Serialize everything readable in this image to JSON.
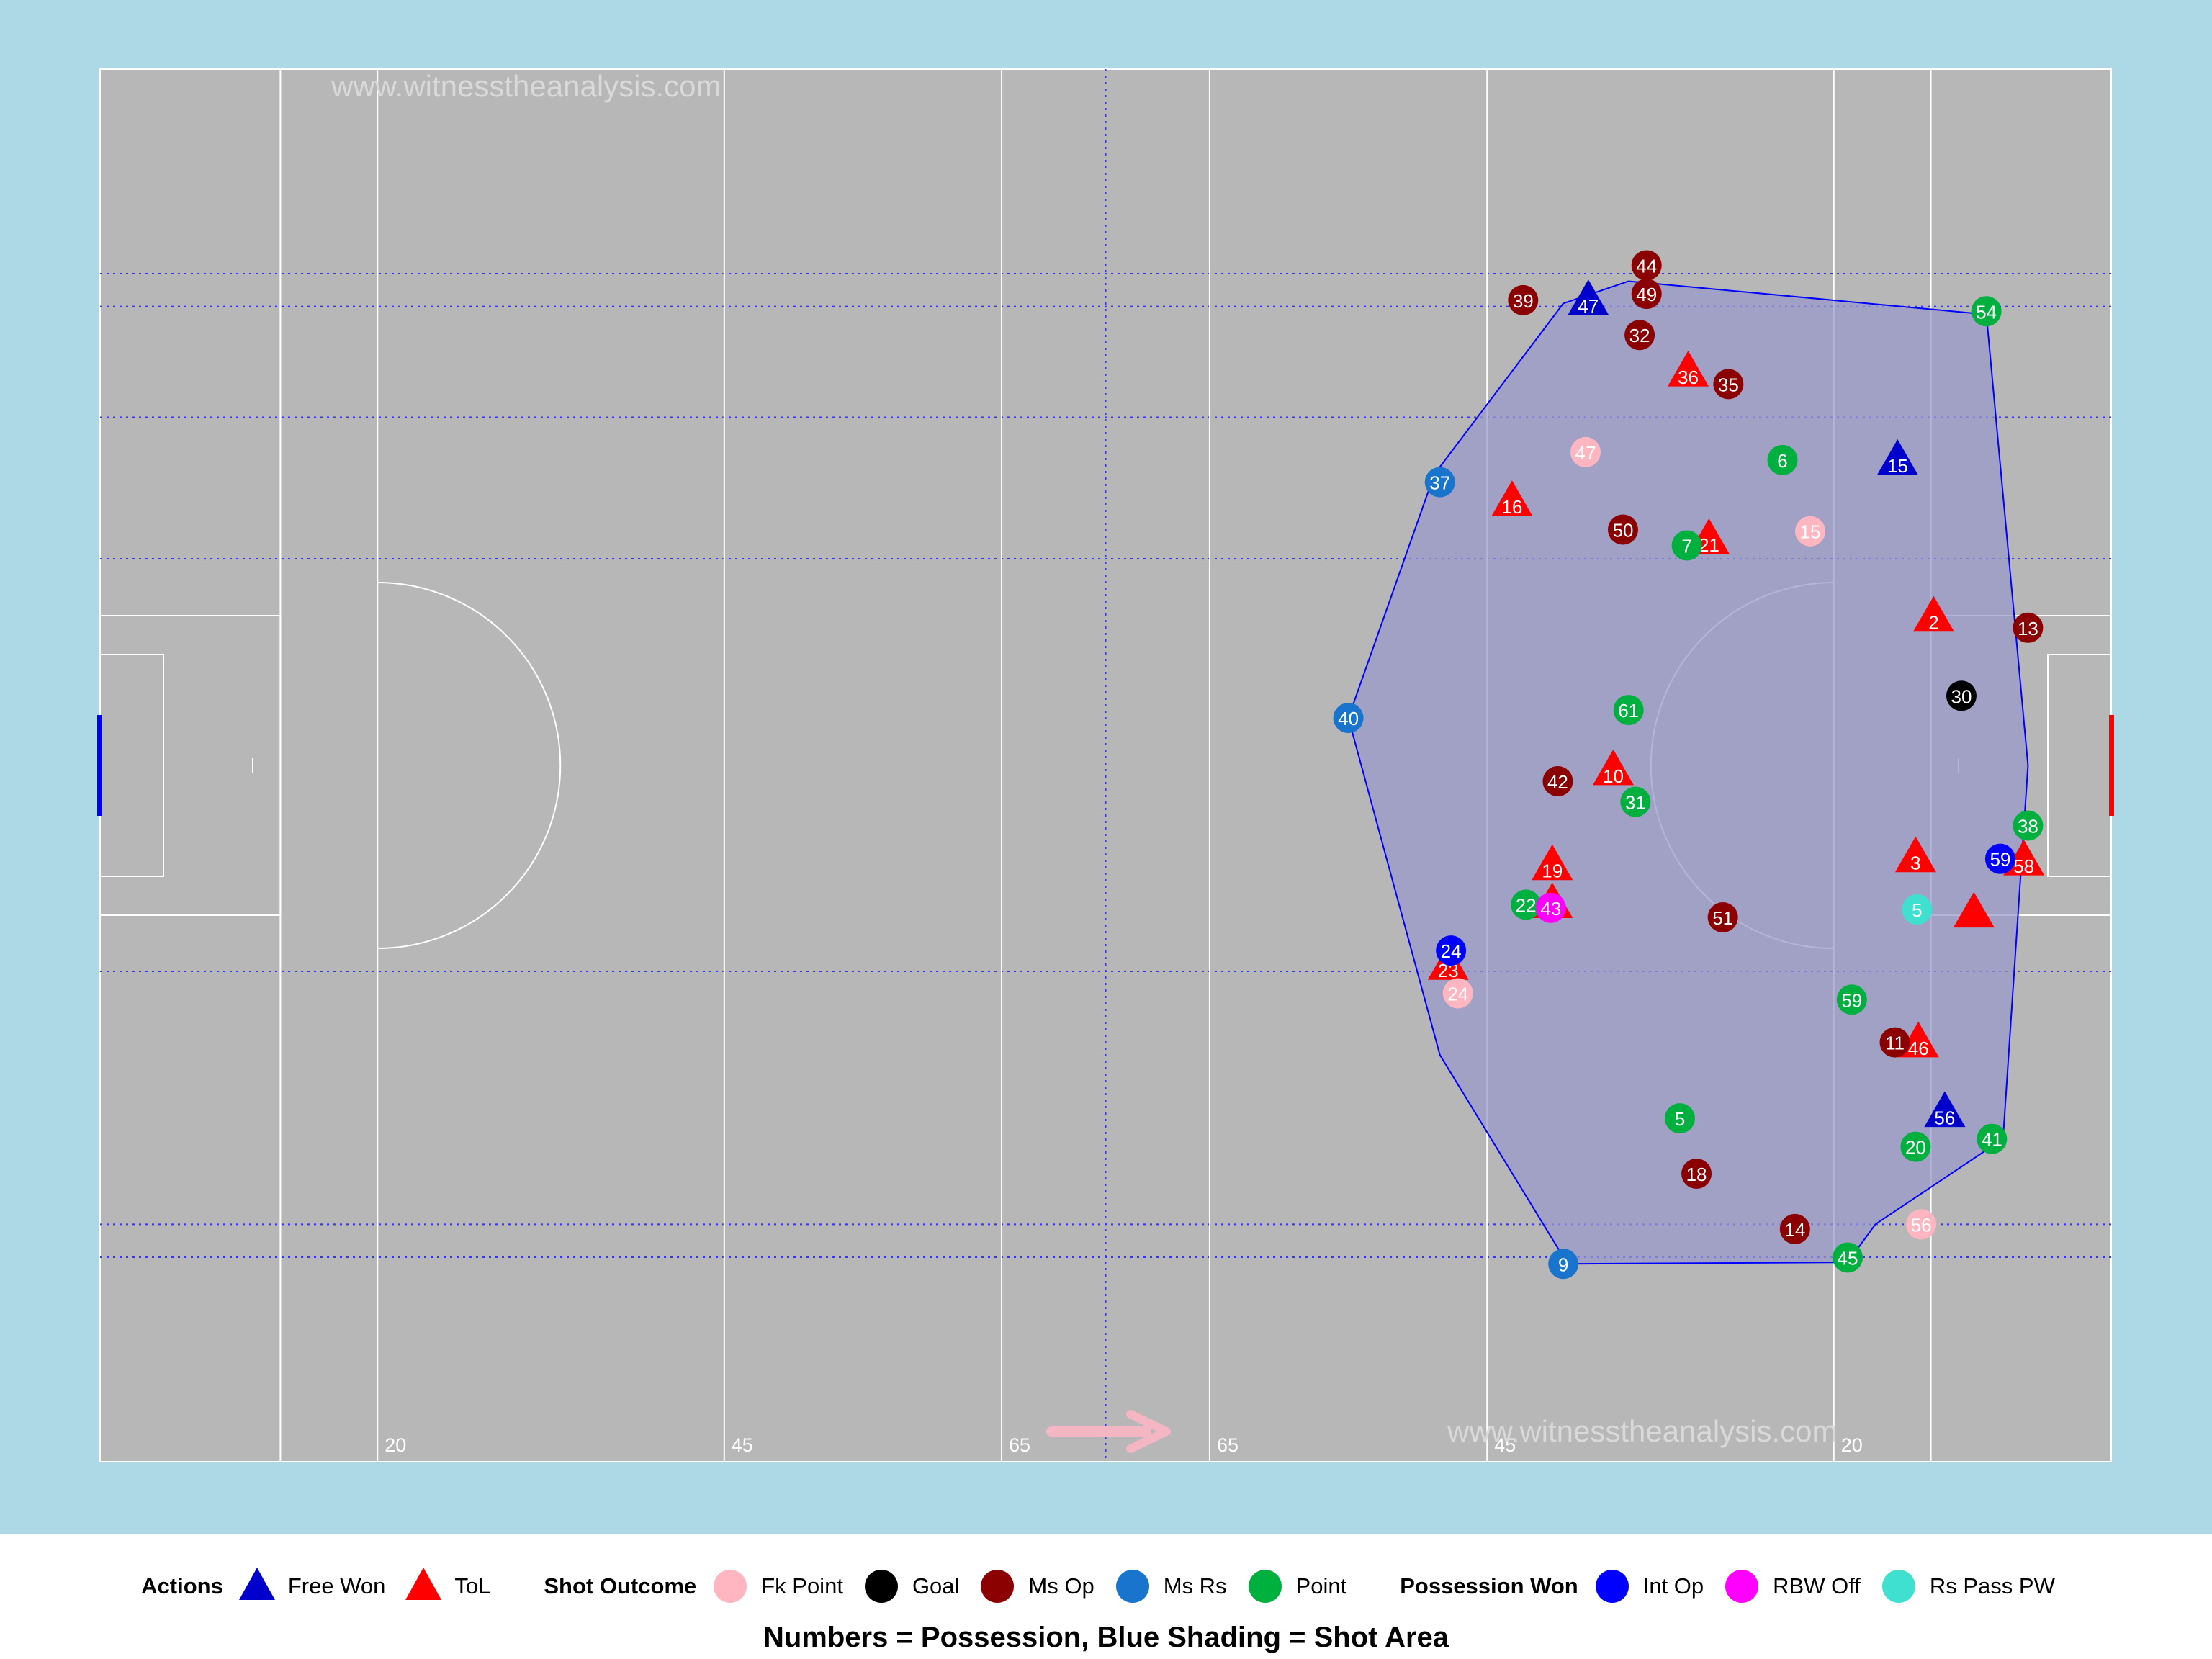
{
  "watermark_text": "www.witnesstheanalysis.com",
  "caption": "Numbers = Possession, Blue Shading = Shot Area",
  "legend": {
    "actions_title": "Actions",
    "shot_title": "Shot Outcome",
    "possession_title": "Possession Won",
    "items": [
      {
        "label": "Free Won",
        "shape": "triangle",
        "color": "#0000cd"
      },
      {
        "label": "ToL",
        "shape": "triangle",
        "color": "#ff0000"
      },
      {
        "label": "Fk Point",
        "shape": "circle",
        "color": "#ffb6c1"
      },
      {
        "label": "Goal",
        "shape": "circle",
        "color": "#000000"
      },
      {
        "label": "Ms Op",
        "shape": "circle",
        "color": "#8b0000"
      },
      {
        "label": "Ms Rs",
        "shape": "circle",
        "color": "#1874cd"
      },
      {
        "label": "Point",
        "shape": "circle",
        "color": "#00b03f"
      },
      {
        "label": "Int Op",
        "shape": "circle",
        "color": "#0000ff"
      },
      {
        "label": "RBW Off",
        "shape": "circle",
        "color": "#ff00ff"
      },
      {
        "label": "Rs Pass PW",
        "shape": "circle",
        "color": "#40e0d0"
      }
    ]
  },
  "chart_data": {
    "type": "scatter",
    "title": "",
    "xlabel": "",
    "ylabel": "",
    "xlim": [
      0,
      145
    ],
    "ylim": [
      0,
      88
    ],
    "pitch_line_labels": [
      "20",
      "45",
      "65",
      "65",
      "45",
      "20"
    ],
    "attack_direction": "right",
    "colors": {
      "Free Won": "#0000cd",
      "ToL": "#ff0000",
      "Fk Point": "#ffb6c1",
      "Goal": "#000000",
      "Ms Op": "#8b0000",
      "Ms Rs": "#1874cd",
      "Point": "#00b03f",
      "Int Op": "#0000ff",
      "RBW Off": "#ff00ff",
      "Rs Pass PW": "#40e0d0"
    },
    "shot_area_hull": [
      [
        105.5,
        73.2
      ],
      [
        110.2,
        74.6
      ],
      [
        136.0,
        72.5
      ],
      [
        139.0,
        44.0
      ],
      [
        137.2,
        20.4
      ],
      [
        128.0,
        15.0
      ],
      [
        126.0,
        12.6
      ],
      [
        105.8,
        12.5
      ],
      [
        96.6,
        25.7
      ],
      [
        90.0,
        47.0
      ],
      [
        96.2,
        62.4
      ]
    ],
    "points": [
      {
        "type": "Free Won",
        "shape": "triangle",
        "x": 107.3,
        "y": 73.3,
        "label": "47"
      },
      {
        "type": "Free Won",
        "shape": "triangle",
        "x": 129.6,
        "y": 63.2,
        "label": "15"
      },
      {
        "type": "Free Won",
        "shape": "triangle",
        "x": 133.0,
        "y": 22.0,
        "label": "56"
      },
      {
        "type": "ToL",
        "shape": "triangle",
        "x": 114.5,
        "y": 68.8,
        "label": "36"
      },
      {
        "type": "ToL",
        "shape": "triangle",
        "x": 101.8,
        "y": 60.6,
        "label": "16"
      },
      {
        "type": "ToL",
        "shape": "triangle",
        "x": 116.0,
        "y": 58.2,
        "label": "21"
      },
      {
        "type": "ToL",
        "shape": "triangle",
        "x": 132.2,
        "y": 53.3,
        "label": "2"
      },
      {
        "type": "ToL",
        "shape": "triangle",
        "x": 109.1,
        "y": 43.6,
        "label": "10"
      },
      {
        "type": "ToL",
        "shape": "triangle",
        "x": 104.7,
        "y": 37.6,
        "label": "19"
      },
      {
        "type": "ToL",
        "shape": "triangle",
        "x": 130.9,
        "y": 38.1,
        "label": "3"
      },
      {
        "type": "ToL",
        "shape": "triangle",
        "x": 138.7,
        "y": 37.9,
        "label": "58"
      },
      {
        "type": "ToL",
        "shape": "triangle",
        "x": 135.1,
        "y": 34.6,
        "label": ""
      },
      {
        "type": "ToL",
        "shape": "triangle",
        "x": 104.7,
        "y": 35.2,
        "label": ""
      },
      {
        "type": "ToL",
        "shape": "triangle",
        "x": 97.2,
        "y": 31.3,
        "label": "23"
      },
      {
        "type": "ToL",
        "shape": "triangle",
        "x": 131.1,
        "y": 26.4,
        "label": "46"
      },
      {
        "type": "Fk Point",
        "shape": "circle",
        "x": 107.1,
        "y": 63.8,
        "label": "47"
      },
      {
        "type": "Fk Point",
        "shape": "circle",
        "x": 123.3,
        "y": 58.8,
        "label": "15"
      },
      {
        "type": "Fk Point",
        "shape": "circle",
        "x": 97.9,
        "y": 29.6,
        "label": "24"
      },
      {
        "type": "Fk Point",
        "shape": "circle",
        "x": 131.3,
        "y": 15.0,
        "label": "56"
      },
      {
        "type": "Goal",
        "shape": "circle",
        "x": 134.2,
        "y": 48.4,
        "label": "30"
      },
      {
        "type": "Ms Op",
        "shape": "circle",
        "x": 111.5,
        "y": 75.6,
        "label": "44"
      },
      {
        "type": "Ms Op",
        "shape": "circle",
        "x": 102.6,
        "y": 73.4,
        "label": "39"
      },
      {
        "type": "Ms Op",
        "shape": "circle",
        "x": 111.5,
        "y": 73.8,
        "label": "49"
      },
      {
        "type": "Ms Op",
        "shape": "circle",
        "x": 111.0,
        "y": 71.2,
        "label": "32"
      },
      {
        "type": "Ms Op",
        "shape": "circle",
        "x": 117.4,
        "y": 68.1,
        "label": "35"
      },
      {
        "type": "Ms Op",
        "shape": "circle",
        "x": 109.8,
        "y": 58.9,
        "label": "50"
      },
      {
        "type": "Ms Op",
        "shape": "circle",
        "x": 139.0,
        "y": 52.7,
        "label": "13"
      },
      {
        "type": "Ms Op",
        "shape": "circle",
        "x": 105.1,
        "y": 43.0,
        "label": "42"
      },
      {
        "type": "Ms Op",
        "shape": "circle",
        "x": 117.0,
        "y": 34.4,
        "label": "51"
      },
      {
        "type": "Ms Op",
        "shape": "circle",
        "x": 129.4,
        "y": 26.5,
        "label": "11"
      },
      {
        "type": "Ms Op",
        "shape": "circle",
        "x": 115.1,
        "y": 18.2,
        "label": "18"
      },
      {
        "type": "Ms Op",
        "shape": "circle",
        "x": 122.2,
        "y": 14.7,
        "label": "14"
      },
      {
        "type": "Ms Rs",
        "shape": "circle",
        "x": 96.6,
        "y": 61.9,
        "label": "37"
      },
      {
        "type": "Ms Rs",
        "shape": "circle",
        "x": 90.0,
        "y": 47.0,
        "label": "40"
      },
      {
        "type": "Ms Rs",
        "shape": "circle",
        "x": 105.5,
        "y": 12.5,
        "label": "9"
      },
      {
        "type": "Point",
        "shape": "circle",
        "x": 136.0,
        "y": 72.7,
        "label": "54"
      },
      {
        "type": "Point",
        "shape": "circle",
        "x": 121.3,
        "y": 63.3,
        "label": "6"
      },
      {
        "type": "Point",
        "shape": "circle",
        "x": 114.4,
        "y": 57.9,
        "label": "7"
      },
      {
        "type": "Point",
        "shape": "circle",
        "x": 110.2,
        "y": 47.5,
        "label": "61"
      },
      {
        "type": "Point",
        "shape": "circle",
        "x": 110.7,
        "y": 41.7,
        "label": "31"
      },
      {
        "type": "Point",
        "shape": "circle",
        "x": 139.0,
        "y": 40.2,
        "label": "38"
      },
      {
        "type": "Point",
        "shape": "circle",
        "x": 102.8,
        "y": 35.2,
        "label": "22"
      },
      {
        "type": "Point",
        "shape": "circle",
        "x": 126.3,
        "y": 29.2,
        "label": "59"
      },
      {
        "type": "Point",
        "shape": "circle",
        "x": 113.9,
        "y": 21.7,
        "label": "5"
      },
      {
        "type": "Point",
        "shape": "circle",
        "x": 136.4,
        "y": 20.4,
        "label": "41"
      },
      {
        "type": "Point",
        "shape": "circle",
        "x": 130.9,
        "y": 19.9,
        "label": "20"
      },
      {
        "type": "Point",
        "shape": "circle",
        "x": 126.0,
        "y": 12.9,
        "label": "45"
      },
      {
        "type": "Int Op",
        "shape": "circle",
        "x": 97.4,
        "y": 32.3,
        "label": "24"
      },
      {
        "type": "Int Op",
        "shape": "circle",
        "x": 137.0,
        "y": 38.1,
        "label": "59"
      },
      {
        "type": "RBW Off",
        "shape": "circle",
        "x": 104.6,
        "y": 35.0,
        "label": "43"
      },
      {
        "type": "Rs Pass PW",
        "shape": "circle",
        "x": 131.0,
        "y": 34.9,
        "label": "5"
      }
    ]
  }
}
